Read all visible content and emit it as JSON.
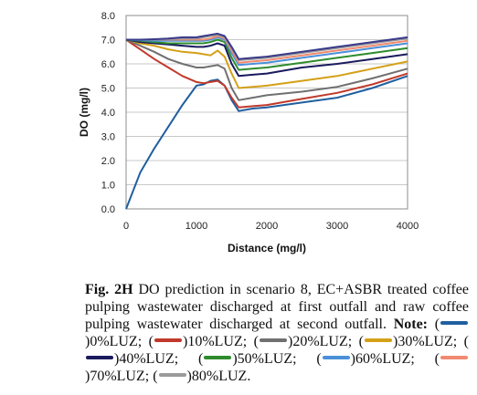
{
  "chart_data": {
    "type": "line",
    "title": "",
    "xlabel": "Distance (mg/l)",
    "ylabel": "DO (mg/l)",
    "xlim": [
      0,
      4000
    ],
    "ylim": [
      0,
      8
    ],
    "x_ticks": [
      "0",
      "1000",
      "2000",
      "3000",
      "4000"
    ],
    "y_ticks": [
      "0.0",
      "1.0",
      "2.0",
      "3.0",
      "4.0",
      "5.0",
      "6.0",
      "7.0",
      "8.0"
    ],
    "grid": "horizontal",
    "x": [
      0,
      200,
      400,
      600,
      800,
      1000,
      1100,
      1200,
      1300,
      1400,
      1500,
      1600,
      1800,
      2000,
      2500,
      3000,
      3500,
      4000
    ],
    "series": [
      {
        "name": "0%LUZ",
        "color": "#1f5f9f",
        "values": [
          0.0,
          1.5,
          2.5,
          3.4,
          4.3,
          5.1,
          5.15,
          5.3,
          5.35,
          5.1,
          4.5,
          4.05,
          4.15,
          4.2,
          4.4,
          4.6,
          5.0,
          5.5
        ]
      },
      {
        "name": "10%LUZ",
        "color": "#c0392b",
        "values": [
          7.0,
          6.6,
          6.2,
          5.85,
          5.5,
          5.25,
          5.2,
          5.25,
          5.3,
          5.1,
          4.6,
          4.2,
          4.25,
          4.3,
          4.55,
          4.8,
          5.15,
          5.6
        ]
      },
      {
        "name": "20%LUZ",
        "color": "#707070",
        "values": [
          7.0,
          6.75,
          6.5,
          6.2,
          6.0,
          5.85,
          5.85,
          5.9,
          5.95,
          5.8,
          5.0,
          4.5,
          4.6,
          4.7,
          4.85,
          5.05,
          5.4,
          5.8
        ]
      },
      {
        "name": "30%LUZ",
        "color": "#d4a017",
        "values": [
          7.0,
          6.85,
          6.75,
          6.6,
          6.5,
          6.45,
          6.4,
          6.35,
          6.55,
          6.3,
          5.6,
          5.0,
          5.05,
          5.1,
          5.3,
          5.5,
          5.8,
          6.1
        ]
      },
      {
        "name": "40%LUZ",
        "color": "#1a1a5e",
        "values": [
          7.0,
          6.9,
          6.85,
          6.8,
          6.75,
          6.7,
          6.7,
          6.75,
          6.85,
          6.75,
          6.0,
          5.5,
          5.55,
          5.6,
          5.85,
          6.0,
          6.2,
          6.4
        ]
      },
      {
        "name": "50%LUZ",
        "color": "#2e8b2e",
        "values": [
          7.0,
          6.95,
          6.9,
          6.85,
          6.85,
          6.85,
          6.85,
          6.9,
          7.0,
          6.9,
          6.25,
          5.75,
          5.8,
          5.85,
          6.05,
          6.25,
          6.45,
          6.65
        ]
      },
      {
        "name": "60%LUZ",
        "color": "#4a90d9",
        "values": [
          7.0,
          6.98,
          6.95,
          6.95,
          6.95,
          6.95,
          6.95,
          7.0,
          7.1,
          7.0,
          6.45,
          5.95,
          6.0,
          6.05,
          6.25,
          6.45,
          6.65,
          6.85
        ]
      },
      {
        "name": "70%LUZ",
        "color": "#f08a70",
        "values": [
          7.0,
          7.0,
          7.0,
          7.0,
          7.0,
          7.0,
          7.0,
          7.05,
          7.15,
          7.05,
          6.55,
          6.05,
          6.1,
          6.15,
          6.35,
          6.55,
          6.75,
          6.95
        ]
      },
      {
        "name": "80%LUZ",
        "color": "#9a9a9a",
        "values": [
          7.0,
          7.0,
          7.0,
          7.02,
          7.05,
          7.05,
          7.1,
          7.15,
          7.2,
          7.1,
          6.65,
          6.15,
          6.2,
          6.25,
          6.45,
          6.65,
          6.85,
          7.05
        ]
      },
      {
        "name": "",
        "color": "#3a3a8a",
        "values": [
          7.0,
          7.0,
          7.02,
          7.05,
          7.1,
          7.1,
          7.15,
          7.2,
          7.25,
          7.15,
          6.7,
          6.2,
          6.25,
          6.3,
          6.5,
          6.7,
          6.9,
          7.1
        ]
      }
    ]
  },
  "caption": {
    "fig_label": "Fig. 2H",
    "text": " DO prediction in scenario 8, EC+ASBR treated coffee pulping wastewater discharged at first outfall and raw coffee pulping wastewater discharged at second outfall. ",
    "note_label": "Note:",
    "legend_items": [
      {
        "label": "0%LUZ",
        "color": "#1f5f9f"
      },
      {
        "label": "10%LUZ",
        "color": "#c0392b"
      },
      {
        "label": "20%LUZ",
        "color": "#707070"
      },
      {
        "label": "30%LUZ",
        "color": "#d4a017"
      },
      {
        "label": "40%LUZ",
        "color": "#1a1a5e"
      },
      {
        "label": "50%LUZ",
        "color": "#2e8b2e"
      },
      {
        "label": "60%LUZ",
        "color": "#4a90d9"
      },
      {
        "label": "70%LUZ",
        "color": "#f08a70"
      },
      {
        "label": "80%LUZ",
        "color": "#9a9a9a"
      }
    ]
  }
}
